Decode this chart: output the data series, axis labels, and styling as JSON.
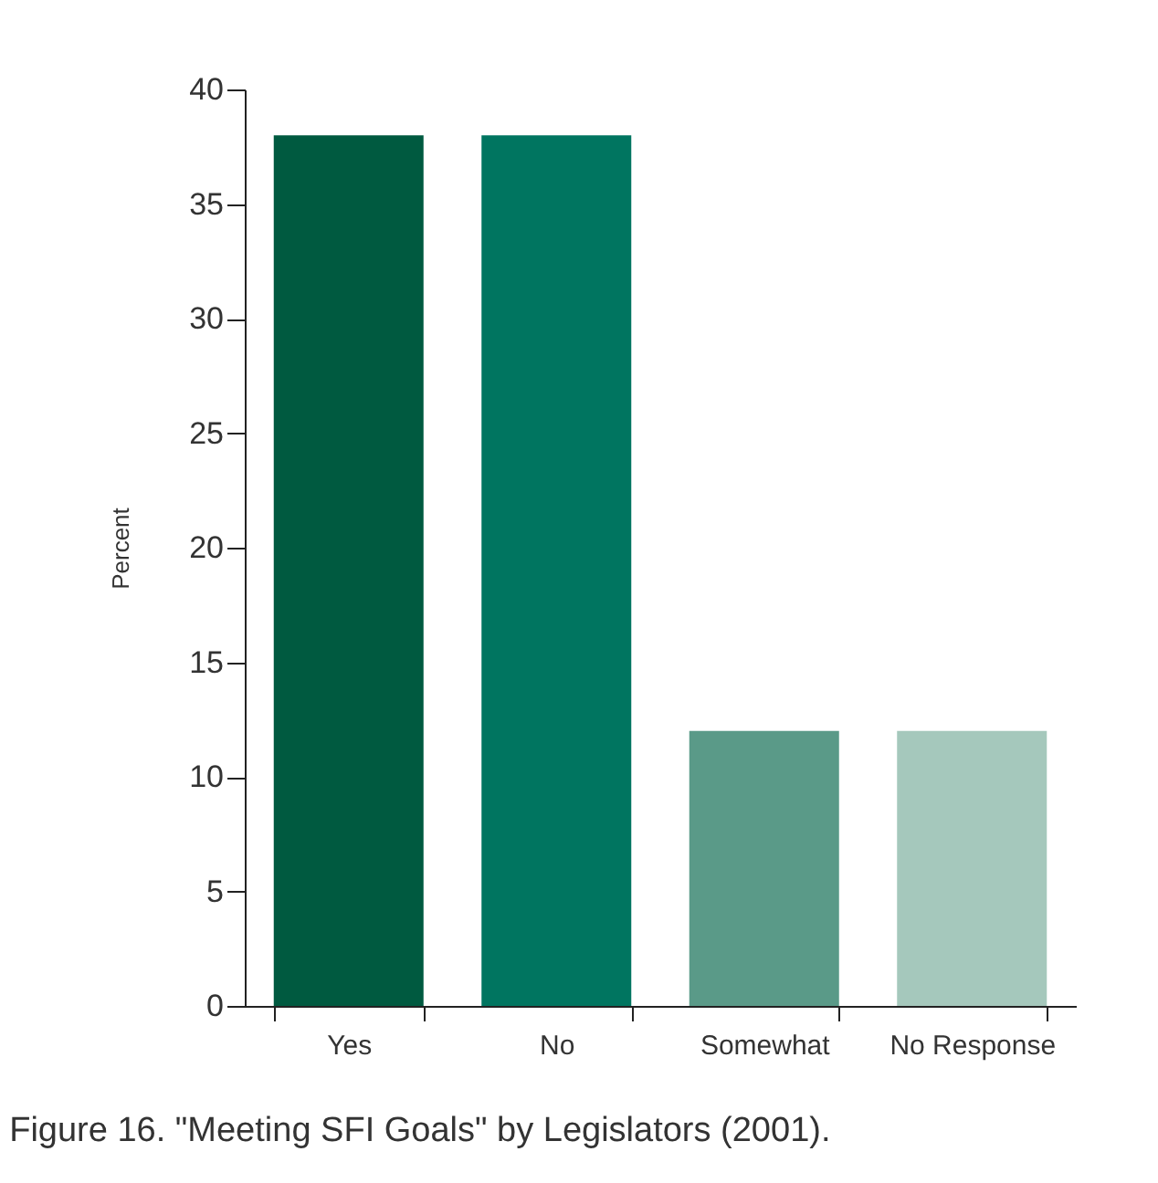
{
  "chart_data": {
    "type": "bar",
    "ylabel": "Percent",
    "categories": [
      "Yes",
      "No",
      "Somewhat",
      "No Response"
    ],
    "values": [
      38,
      38,
      12,
      12
    ],
    "colors": [
      "#005a40",
      "#007560",
      "#5a9a88",
      "#a5c8bc"
    ],
    "ylim": [
      0,
      40
    ],
    "yticks": [
      0,
      5,
      10,
      15,
      20,
      25,
      30,
      35,
      40
    ],
    "grid": false,
    "annotations": [
      "Figure 16.  \"Meeting SFI Goals\" by Legislators (2001)."
    ]
  }
}
